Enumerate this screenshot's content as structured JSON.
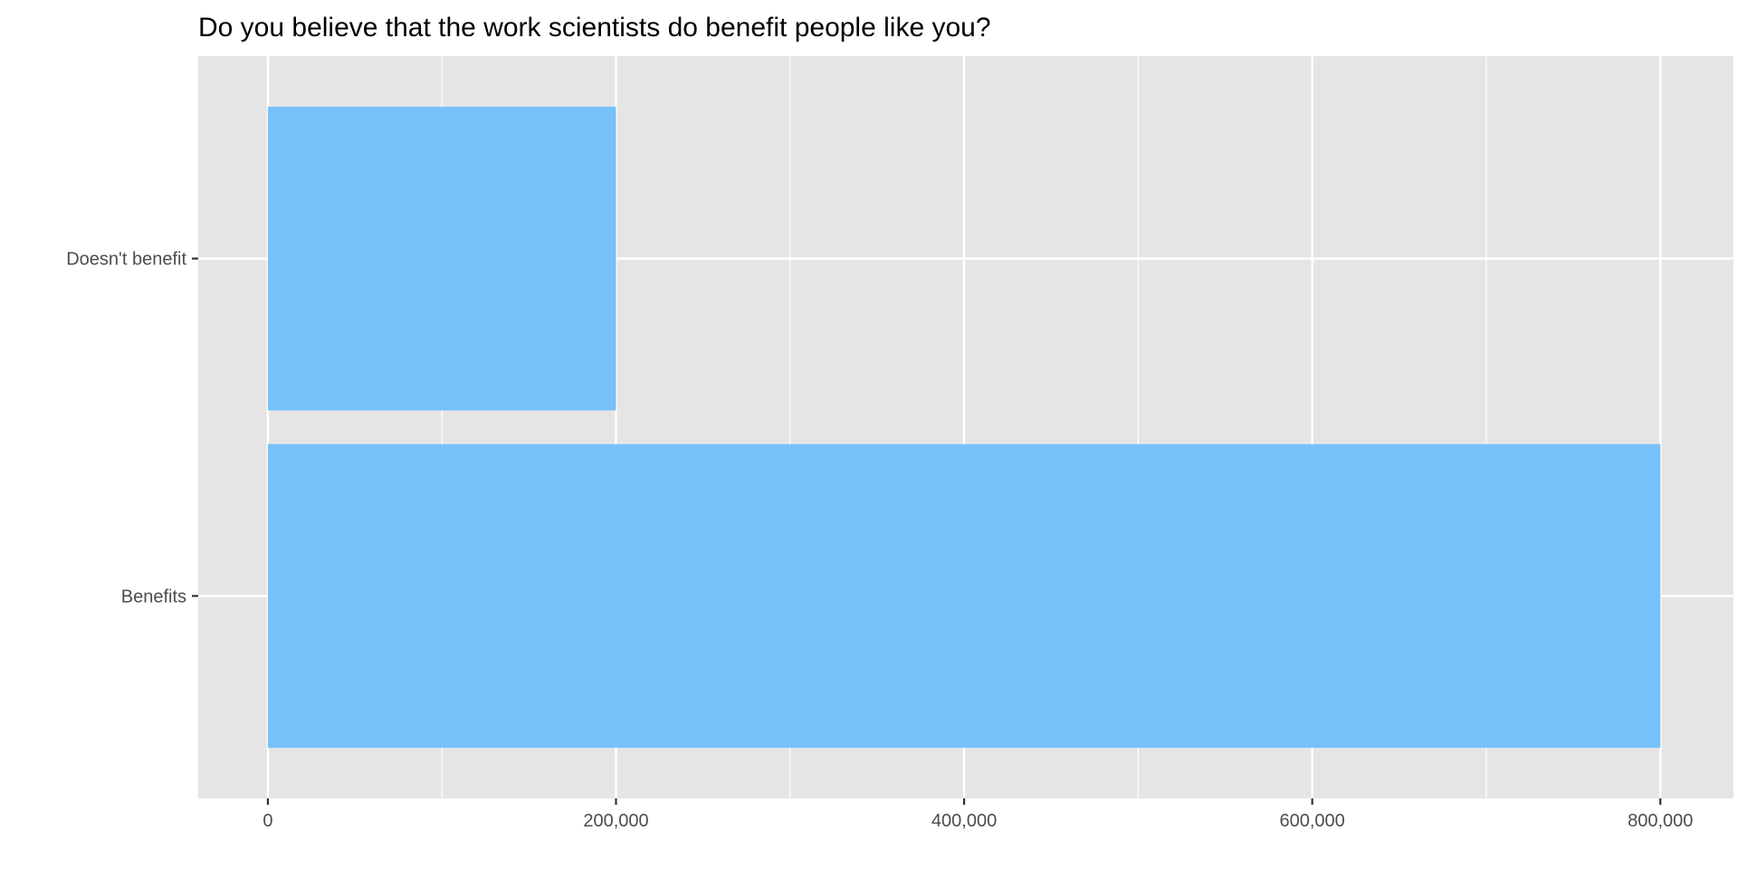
{
  "chart_data": {
    "type": "bar",
    "orientation": "horizontal",
    "title": "Do you believe that the work scientists do benefit people like you?",
    "xlabel": "",
    "ylabel": "",
    "categories": [
      "Doesn't benefit",
      "Benefits"
    ],
    "values": [
      200000,
      800000
    ],
    "xlim": [
      -40000,
      842000
    ],
    "x_ticks": [
      0,
      200000,
      400000,
      600000,
      800000
    ],
    "x_tick_labels": [
      "0",
      "200,000",
      "400,000",
      "600,000",
      "800,000"
    ],
    "grid": true,
    "legend": "none",
    "colors": {
      "bar": "#76c1f9",
      "panel": "#e5e5e5",
      "grid": "#ffffff"
    }
  }
}
